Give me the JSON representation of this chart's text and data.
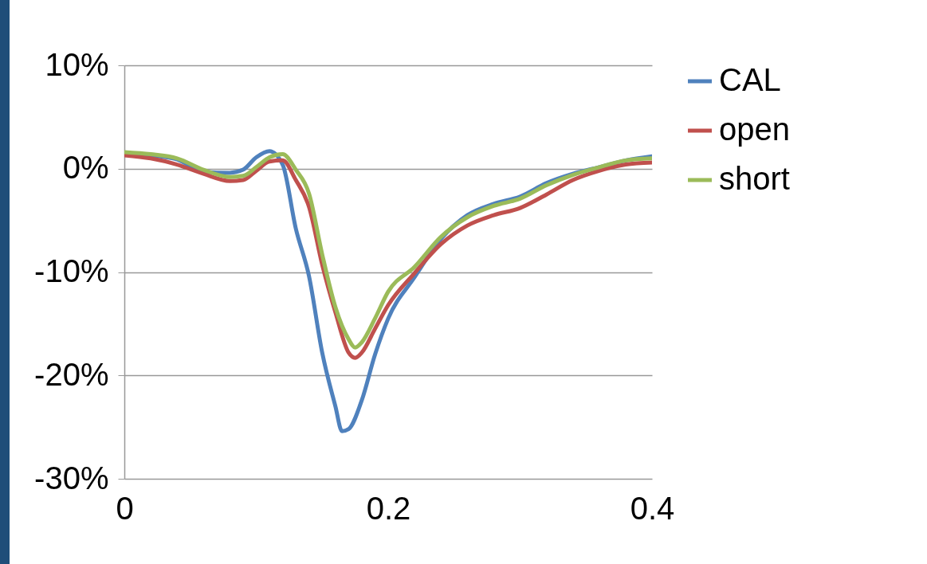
{
  "chart_data": {
    "type": "line",
    "x": [
      0,
      0.02,
      0.04,
      0.06,
      0.08,
      0.09,
      0.1,
      0.11,
      0.12,
      0.13,
      0.14,
      0.15,
      0.16,
      0.17,
      0.175,
      0.18,
      0.19,
      0.2,
      0.22,
      0.24,
      0.26,
      0.28,
      0.3,
      0.32,
      0.34,
      0.36,
      0.38,
      0.4
    ],
    "series": [
      {
        "name": "CAL",
        "color": "#4f81bd",
        "x": [
          0,
          0.02,
          0.04,
          0.06,
          0.08,
          0.09,
          0.1,
          0.11,
          0.12,
          0.13,
          0.14,
          0.15,
          0.16,
          0.165,
          0.17,
          0.18,
          0.19,
          0.2,
          0.22,
          0.24,
          0.26,
          0.28,
          0.3,
          0.32,
          0.34,
          0.36,
          0.38,
          0.4
        ],
        "values": [
          1.5,
          1.3,
          0.9,
          -0.3,
          -0.4,
          -0.1,
          1.1,
          1.7,
          0.4,
          -5.8,
          -10.4,
          -17.8,
          -23,
          -25.4,
          -25.2,
          -22.4,
          -18,
          -14.5,
          -10.5,
          -6.8,
          -4.5,
          -3.4,
          -2.7,
          -1.4,
          -0.5,
          0.15,
          0.8,
          1.2
        ]
      },
      {
        "name": "open",
        "color": "#c0504d",
        "values": [
          1.3,
          1,
          0.4,
          -0.5,
          -1.2,
          -1.1,
          -0.2,
          0.7,
          0.8,
          -1.1,
          -3.7,
          -9.3,
          -13.9,
          -17.8,
          -18.3,
          -17.8,
          -15.5,
          -13.2,
          -10.1,
          -7.3,
          -5.5,
          -4.5,
          -3.8,
          -2.5,
          -1.1,
          -0.2,
          0.4,
          0.6
        ]
      },
      {
        "name": "short",
        "color": "#9bbb59",
        "values": [
          1.6,
          1.4,
          1,
          -0.1,
          -0.8,
          -0.7,
          0.15,
          1.1,
          1.4,
          -0.1,
          -2.4,
          -8.3,
          -13.4,
          -16.5,
          -17.3,
          -16.8,
          -14.5,
          -11.9,
          -9.5,
          -6.6,
          -4.7,
          -3.6,
          -2.9,
          -1.6,
          -0.6,
          0.15,
          0.8,
          1
        ]
      }
    ],
    "xlim": [
      0,
      0.4
    ],
    "xticks": [
      0,
      0.2,
      0.4
    ],
    "ylim": [
      -30,
      10
    ],
    "yticks": [
      {
        "value": 10,
        "label": "10%"
      },
      {
        "value": 0,
        "label": "0%"
      },
      {
        "value": -10,
        "label": "-10%"
      },
      {
        "value": -20,
        "label": "-20%"
      },
      {
        "value": -30,
        "label": "-30%"
      }
    ],
    "grid": "y",
    "legend": "right",
    "marker": "none",
    "line_style": "solid"
  }
}
